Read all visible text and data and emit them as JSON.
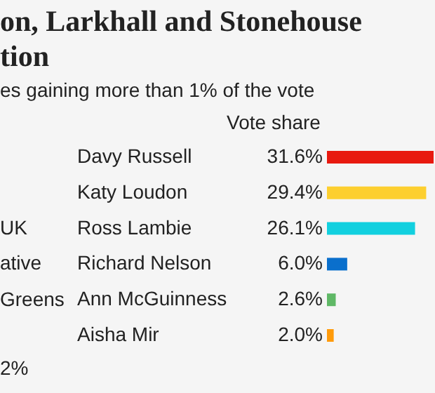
{
  "chart_data": {
    "type": "bar",
    "orientation": "horizontal",
    "title": "on, Larkhall and Stonehouse\ntion",
    "subtitle": "es gaining more than 1% of the vote",
    "xlabel": "Vote share",
    "categories": [
      "Davy Russell",
      "Katy Loudon",
      "Ross Lambie",
      "Richard Nelson",
      "Ann McGuinness",
      "Aisha Mir"
    ],
    "values": [
      31.6,
      29.4,
      26.1,
      6.0,
      2.6,
      2.0
    ],
    "value_labels": [
      "31.6%",
      "29.4%",
      "26.1%",
      "6.0%",
      "2.6%",
      "2.0%"
    ],
    "colors": [
      "#e8190f",
      "#fdcf2f",
      "#12d0df",
      "#0a6fcc",
      "#5fb866",
      "#ff9b0b"
    ],
    "annotations": [
      "UK",
      "ative",
      "Greens",
      "2%"
    ]
  }
}
